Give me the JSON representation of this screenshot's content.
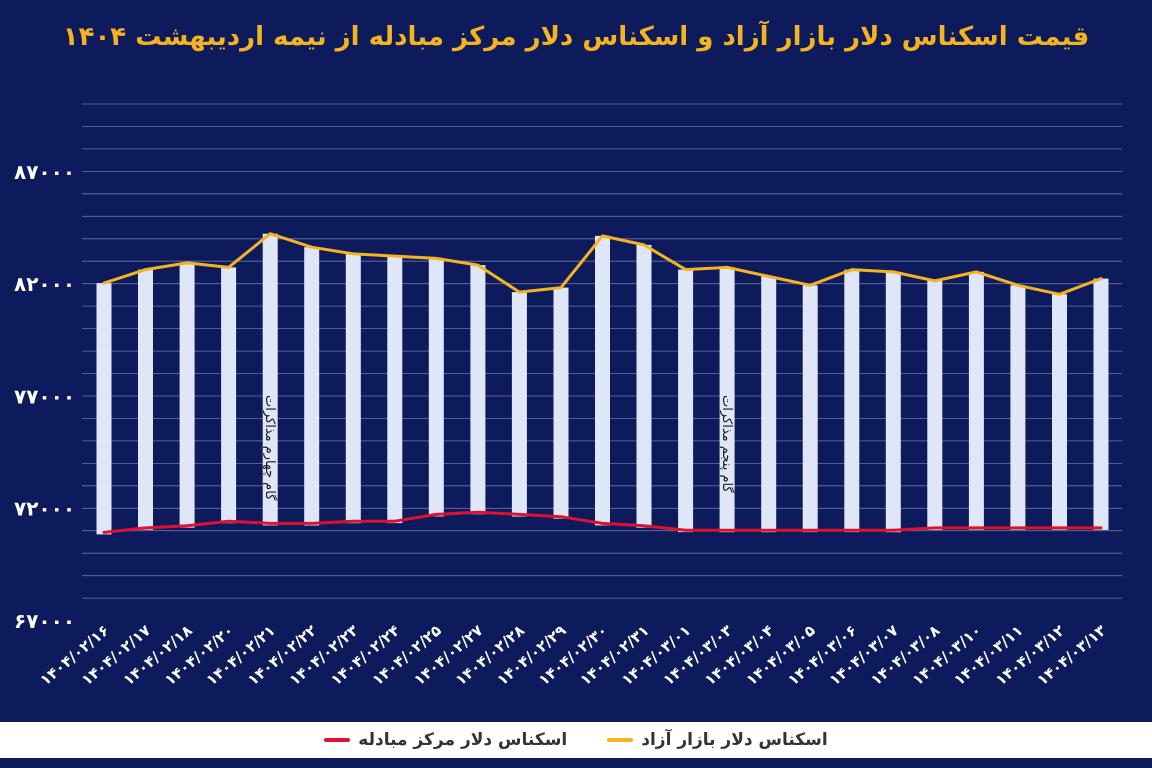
{
  "chart_data": {
    "type": "bar+line",
    "title": "قیمت اسکناس دلار بازار آزاد و اسکناس دلار مرکز مبادله از نیمه اردیبهشت ۱۴۰۴",
    "categories": [
      "۱۴۰۴/۰۲/۱۶",
      "۱۴۰۴/۰۲/۱۷",
      "۱۴۰۴/۰۲/۱۸",
      "۱۴۰۴/۰۲/۲۰",
      "۱۴۰۴/۰۲/۲۱",
      "۱۴۰۴/۰۲/۲۲",
      "۱۴۰۴/۰۲/۲۳",
      "۱۴۰۴/۰۲/۲۴",
      "۱۴۰۴/۰۲/۲۵",
      "۱۴۰۴/۰۲/۲۷",
      "۱۴۰۴/۰۲/۲۸",
      "۱۴۰۴/۰۲/۲۹",
      "۱۴۰۴/۰۲/۳۰",
      "۱۴۰۴/۰۲/۳۱",
      "۱۴۰۴/۰۳/۰۱",
      "۱۴۰۴/۰۳/۰۳",
      "۱۴۰۴/۰۳/۰۴",
      "۱۴۰۴/۰۳/۰۵",
      "۱۴۰۴/۰۳/۰۶",
      "۱۴۰۴/۰۳/۰۷",
      "۱۴۰۴/۰۳/۰۸",
      "۱۴۰۴/۰۳/۱۰",
      "۱۴۰۴/۰۳/۱۱",
      "۱۴۰۴/۰۳/۱۲",
      "۱۴۰۴/۰۳/۱۳"
    ],
    "series": [
      {
        "name": "اسکناس دلار بازار آزاد",
        "kind": "bar+line",
        "color": "#f5b31f",
        "bar_color": "#dfe6f7",
        "values": [
          82000,
          82600,
          82900,
          82700,
          84200,
          83600,
          83300,
          83200,
          83100,
          82800,
          81600,
          81800,
          84100,
          83700,
          82600,
          82700,
          82300,
          81900,
          82600,
          82500,
          82100,
          82500,
          81900,
          81500,
          82200
        ]
      },
      {
        "name": "اسکناس دلار مرکز مبادله",
        "kind": "line",
        "color": "#e0102f",
        "values": [
          70900,
          71100,
          71200,
          71400,
          71300,
          71300,
          71400,
          71400,
          71700,
          71800,
          71700,
          71600,
          71300,
          71200,
          71000,
          71000,
          71000,
          71000,
          71000,
          71000,
          71100,
          71100,
          71100,
          71100,
          71100
        ]
      }
    ],
    "y_ticks": [
      "۶۷۰۰۰",
      "۷۲۰۰۰",
      "۷۷۰۰۰",
      "۸۲۰۰۰",
      "۸۷۰۰۰"
    ],
    "y_tick_values": [
      67000,
      72000,
      77000,
      82000,
      87000
    ],
    "ylim": [
      67000,
      87000
    ],
    "grid": true,
    "legend_position": "bottom",
    "annotations": [
      {
        "text": "گام چهارم مذاکرات",
        "category_index": 4
      },
      {
        "text": "گام پنجم مذاکرات",
        "category_index": 15
      }
    ]
  }
}
